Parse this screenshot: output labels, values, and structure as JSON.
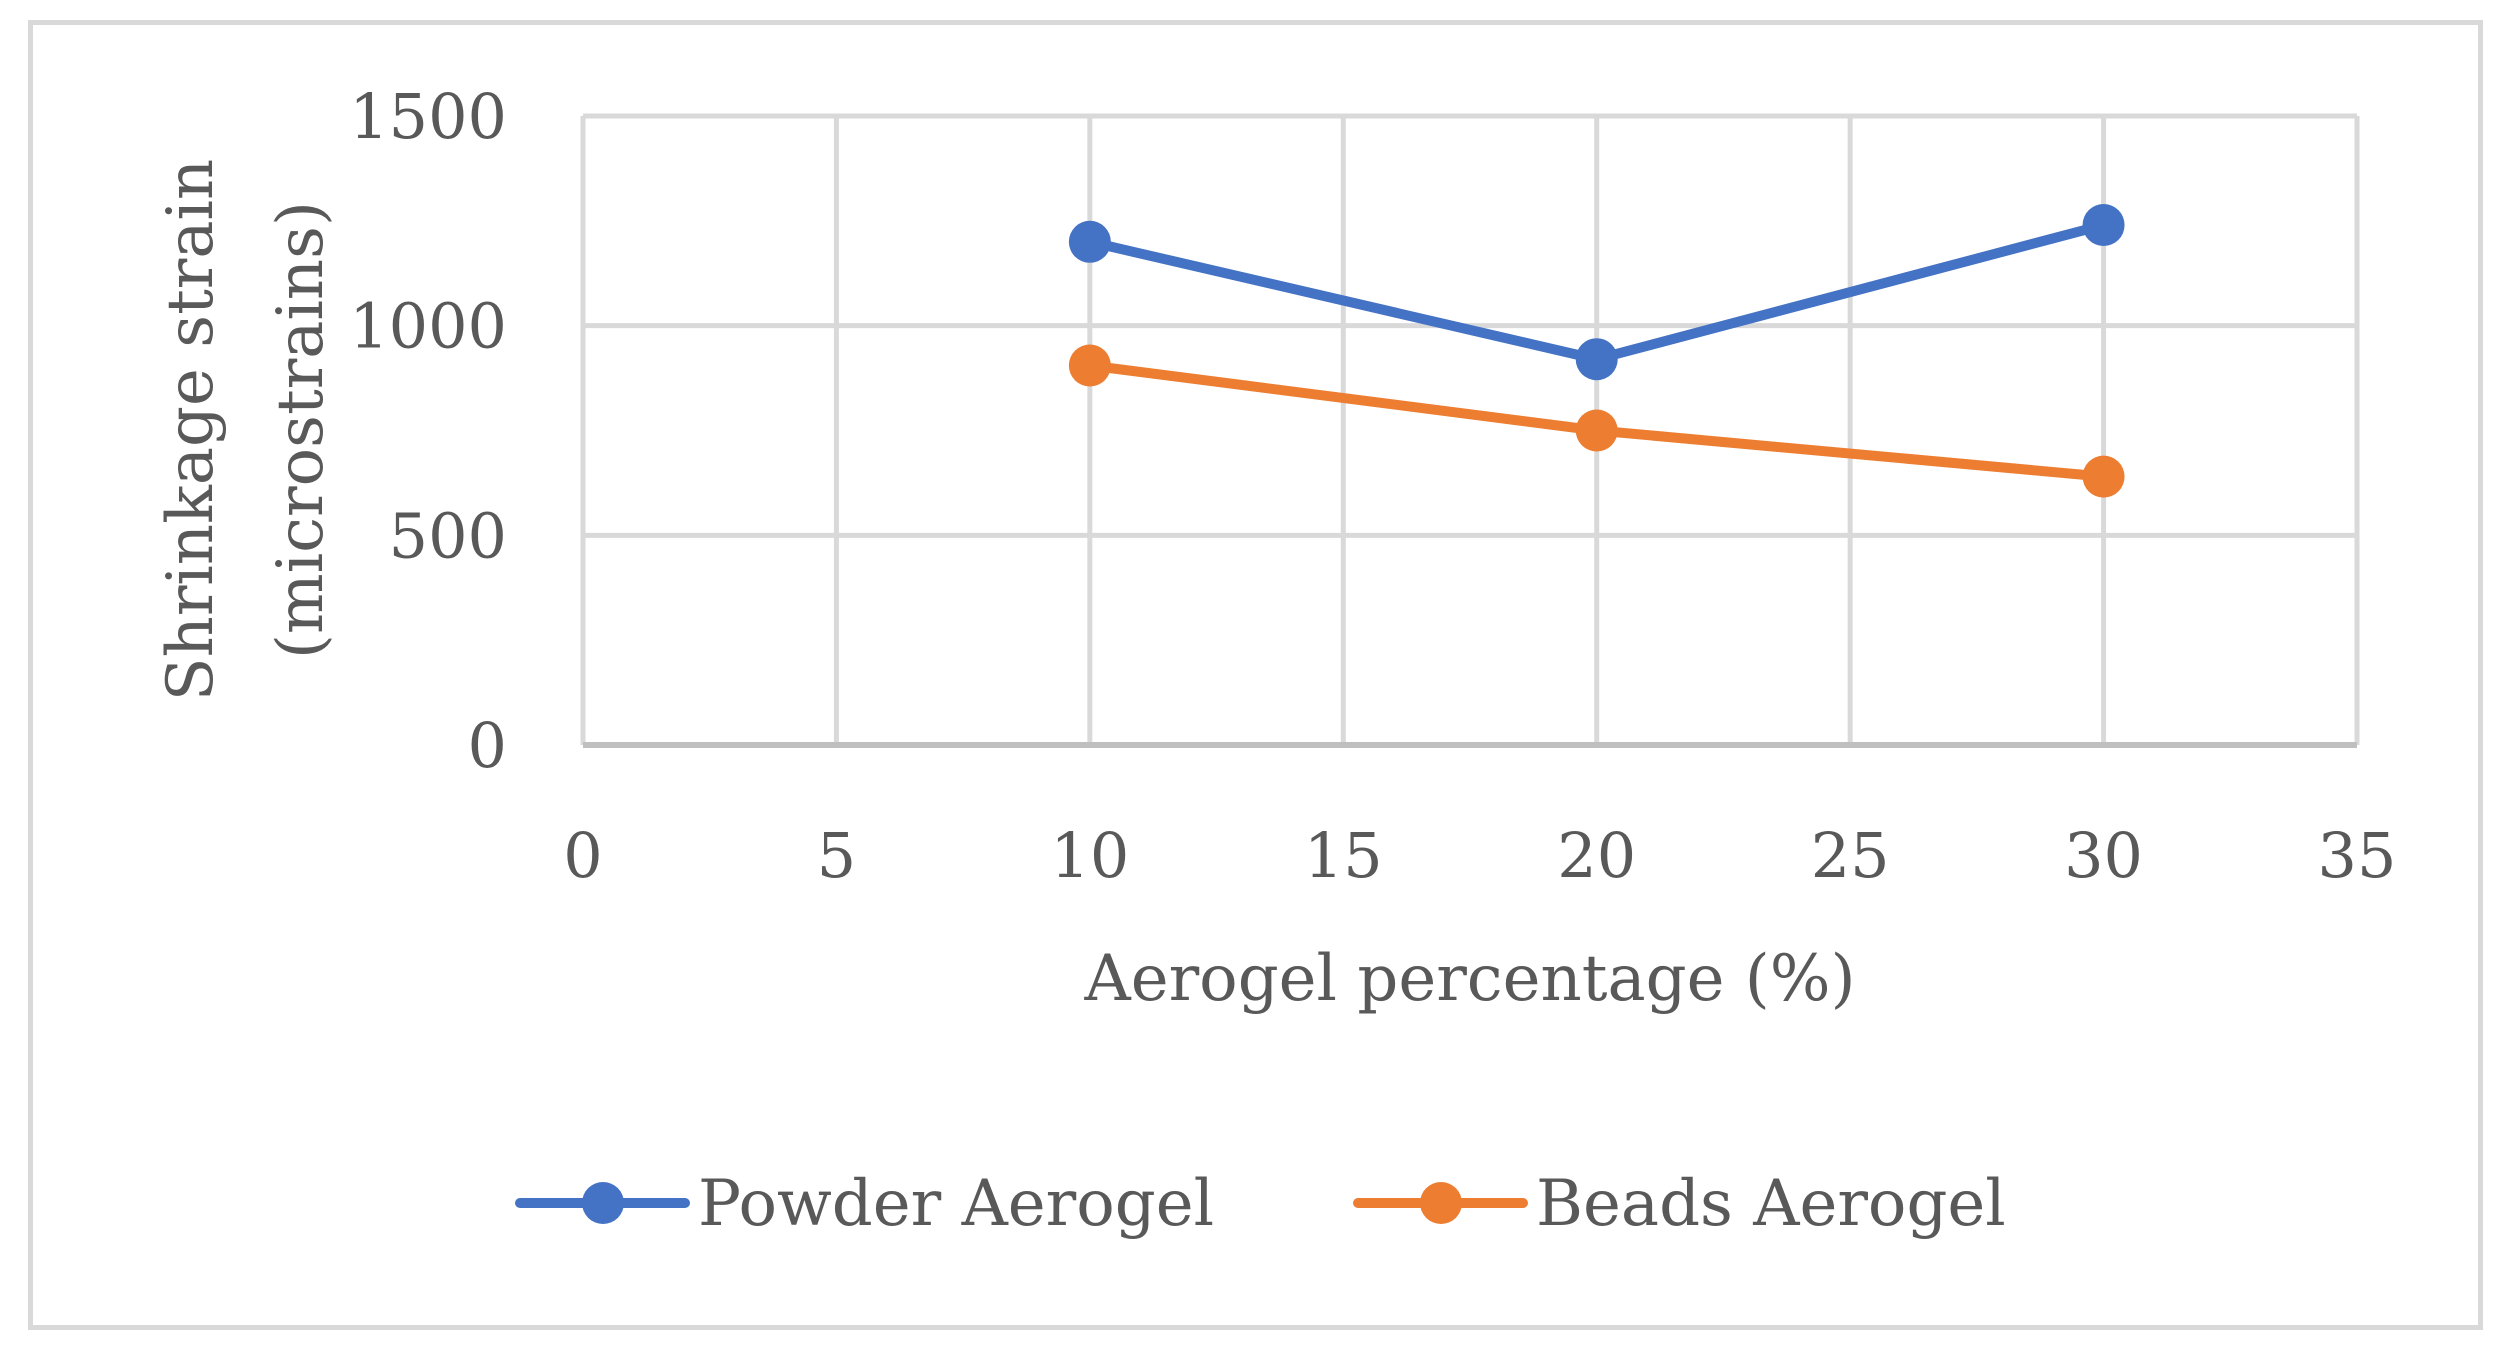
{
  "chart_data": {
    "type": "scatter",
    "title": "",
    "xlabel": "Aerogel percentage (%)",
    "ylabel_lines": [
      "Shrinkage strain",
      "(microstrains)"
    ],
    "xlim": [
      0,
      35
    ],
    "ylim": [
      0,
      1500
    ],
    "xticks": [
      0,
      5,
      10,
      15,
      20,
      25,
      30,
      35
    ],
    "yticks": [
      0,
      500,
      1000,
      1500
    ],
    "grid": true,
    "legend_position": "bottom",
    "series": [
      {
        "name": "Powder Aerogel",
        "color": "#4472c4",
        "x": [
          10,
          20,
          30
        ],
        "y": [
          1200,
          920,
          1240
        ]
      },
      {
        "name": "Beads Aerogel",
        "color": "#ed7d31",
        "x": [
          10,
          20,
          30
        ],
        "y": [
          905,
          750,
          640
        ]
      }
    ]
  }
}
